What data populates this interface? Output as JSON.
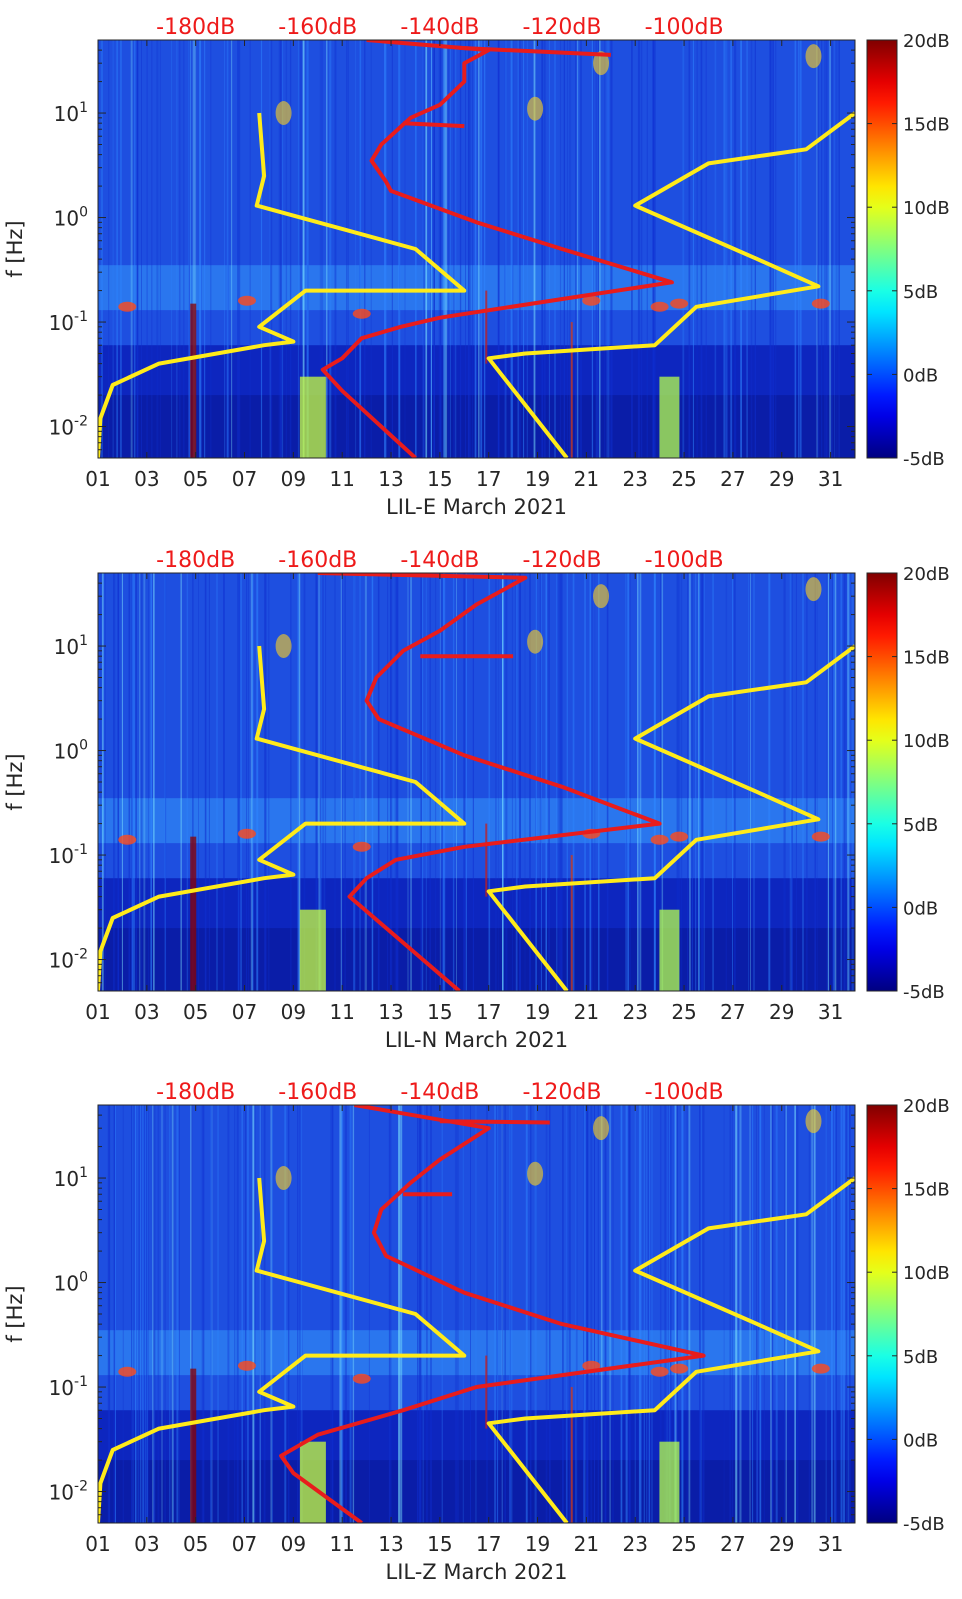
{
  "chart_data": [
    {
      "type": "heatmap",
      "title": "",
      "xlabel": "LIL-E March 2021",
      "ylabel": "f [Hz]",
      "x_ticks": [
        "01",
        "03",
        "05",
        "07",
        "09",
        "11",
        "13",
        "15",
        "17",
        "19",
        "21",
        "23",
        "25",
        "27",
        "29",
        "31"
      ],
      "xlim": [
        1,
        32
      ],
      "ylim": [
        0.005,
        50
      ],
      "y_scale": "log",
      "y_ticks": [
        {
          "value": 0.01,
          "base": "10",
          "exp": "-2"
        },
        {
          "value": 0.1,
          "base": "10",
          "exp": "-1"
        },
        {
          "value": 1,
          "base": "10",
          "exp": "0"
        },
        {
          "value": 10,
          "base": "10",
          "exp": "1"
        }
      ],
      "top_ticks": [
        "-180dB",
        "-160dB",
        "-140dB",
        "-120dB",
        "-100dB"
      ],
      "colorbar": {
        "range": [
          -5,
          20
        ],
        "ticks": [
          "20dB",
          "15dB",
          "10dB",
          "5dB",
          "0dB",
          "-5dB"
        ],
        "colormap": "jet"
      },
      "series": [
        {
          "color": "#ffeb1a",
          "points": [
            [
              1.0,
              0.005
            ],
            [
              1.1,
              0.012
            ],
            [
              1.6,
              0.025
            ],
            [
              3.5,
              0.04
            ],
            [
              7.8,
              0.06
            ],
            [
              9.0,
              0.065
            ],
            [
              7.6,
              0.09
            ],
            [
              9.5,
              0.2
            ],
            [
              16.0,
              0.2
            ],
            [
              14.0,
              0.5
            ],
            [
              7.5,
              1.3
            ],
            [
              7.8,
              2.5
            ],
            [
              7.6,
              10.0
            ]
          ]
        },
        {
          "color": "#ffeb1a",
          "points": [
            [
              20.2,
              0.005
            ],
            [
              17.0,
              0.045
            ],
            [
              18.5,
              0.05
            ],
            [
              23.8,
              0.06
            ],
            [
              25.5,
              0.14
            ],
            [
              30.5,
              0.22
            ],
            [
              28.0,
              0.4
            ],
            [
              23.0,
              1.3
            ],
            [
              26.0,
              3.3
            ],
            [
              30.0,
              4.5
            ],
            [
              32.0,
              10.0
            ]
          ]
        },
        {
          "color": "#e81c1c",
          "points": [
            [
              14.0,
              0.005
            ],
            [
              11.0,
              0.022
            ],
            [
              10.2,
              0.035
            ],
            [
              11.0,
              0.045
            ],
            [
              11.8,
              0.07
            ],
            [
              13.4,
              0.09
            ],
            [
              15.0,
              0.11
            ],
            [
              24.5,
              0.24
            ],
            [
              20.0,
              0.5
            ],
            [
              16.5,
              0.9
            ],
            [
              13.0,
              1.8
            ],
            [
              12.8,
              2.2
            ],
            [
              12.2,
              3.5
            ],
            [
              12.6,
              5.0
            ],
            [
              13.8,
              9.0
            ],
            [
              15.0,
              12.0
            ],
            [
              16.0,
              20.0
            ],
            [
              16.0,
              30.0
            ],
            [
              17.0,
              40.0
            ],
            [
              12.0,
              50.0
            ]
          ]
        },
        {
          "color": "#e81c1c",
          "points": [
            [
              15.8,
              42.0
            ],
            [
              22.0,
              36.0
            ]
          ]
        },
        {
          "color": "#e81c1c",
          "points": [
            [
              13.5,
              8.0
            ],
            [
              16.0,
              7.5
            ]
          ]
        }
      ]
    },
    {
      "type": "heatmap",
      "title": "",
      "xlabel": "LIL-N March 2021",
      "ylabel": "f [Hz]",
      "x_ticks": [
        "01",
        "03",
        "05",
        "07",
        "09",
        "11",
        "13",
        "15",
        "17",
        "19",
        "21",
        "23",
        "25",
        "27",
        "29",
        "31"
      ],
      "xlim": [
        1,
        32
      ],
      "ylim": [
        0.005,
        50
      ],
      "y_scale": "log",
      "y_ticks": [
        {
          "value": 0.01,
          "base": "10",
          "exp": "-2"
        },
        {
          "value": 0.1,
          "base": "10",
          "exp": "-1"
        },
        {
          "value": 1,
          "base": "10",
          "exp": "0"
        },
        {
          "value": 10,
          "base": "10",
          "exp": "1"
        }
      ],
      "top_ticks": [
        "-180dB",
        "-160dB",
        "-140dB",
        "-120dB",
        "-100dB"
      ],
      "colorbar": {
        "range": [
          -5,
          20
        ],
        "ticks": [
          "20dB",
          "15dB",
          "10dB",
          "5dB",
          "0dB",
          "-5dB"
        ],
        "colormap": "jet"
      },
      "series": [
        {
          "color": "#ffeb1a",
          "points": [
            [
              1.0,
              0.005
            ],
            [
              1.1,
              0.012
            ],
            [
              1.6,
              0.025
            ],
            [
              3.5,
              0.04
            ],
            [
              7.8,
              0.06
            ],
            [
              9.0,
              0.065
            ],
            [
              7.6,
              0.09
            ],
            [
              9.5,
              0.2
            ],
            [
              16.0,
              0.2
            ],
            [
              14.0,
              0.5
            ],
            [
              7.5,
              1.3
            ],
            [
              7.8,
              2.5
            ],
            [
              7.6,
              10.0
            ]
          ]
        },
        {
          "color": "#ffeb1a",
          "points": [
            [
              20.2,
              0.005
            ],
            [
              17.0,
              0.045
            ],
            [
              18.5,
              0.05
            ],
            [
              23.8,
              0.06
            ],
            [
              25.5,
              0.14
            ],
            [
              30.5,
              0.22
            ],
            [
              28.0,
              0.4
            ],
            [
              23.0,
              1.3
            ],
            [
              26.0,
              3.3
            ],
            [
              30.0,
              4.5
            ],
            [
              32.0,
              10.0
            ]
          ]
        },
        {
          "color": "#e81c1c",
          "points": [
            [
              15.8,
              0.005
            ],
            [
              11.3,
              0.04
            ],
            [
              12.0,
              0.06
            ],
            [
              13.2,
              0.09
            ],
            [
              16.0,
              0.12
            ],
            [
              24.0,
              0.2
            ],
            [
              20.0,
              0.45
            ],
            [
              16.0,
              0.9
            ],
            [
              12.5,
              2.0
            ],
            [
              12.0,
              3.0
            ],
            [
              12.4,
              5.0
            ],
            [
              13.5,
              9.0
            ],
            [
              15.0,
              14.0
            ],
            [
              16.5,
              25.0
            ],
            [
              18.5,
              45.0
            ],
            [
              10.0,
              50.0
            ]
          ]
        },
        {
          "color": "#e81c1c",
          "points": [
            [
              14.2,
              8.0
            ],
            [
              18.0,
              8.0
            ]
          ]
        }
      ]
    },
    {
      "type": "heatmap",
      "title": "",
      "xlabel": "LIL-Z March 2021",
      "ylabel": "f [Hz]",
      "x_ticks": [
        "01",
        "03",
        "05",
        "07",
        "09",
        "11",
        "13",
        "15",
        "17",
        "19",
        "21",
        "23",
        "25",
        "27",
        "29",
        "31"
      ],
      "xlim": [
        1,
        32
      ],
      "ylim": [
        0.005,
        50
      ],
      "y_scale": "log",
      "y_ticks": [
        {
          "value": 0.01,
          "base": "10",
          "exp": "-2"
        },
        {
          "value": 0.1,
          "base": "10",
          "exp": "-1"
        },
        {
          "value": 1,
          "base": "10",
          "exp": "0"
        },
        {
          "value": 10,
          "base": "10",
          "exp": "1"
        }
      ],
      "top_ticks": [
        "-180dB",
        "-160dB",
        "-140dB",
        "-120dB",
        "-100dB"
      ],
      "colorbar": {
        "range": [
          -5,
          20
        ],
        "ticks": [
          "20dB",
          "15dB",
          "10dB",
          "5dB",
          "0dB",
          "-5dB"
        ],
        "colormap": "jet"
      },
      "series": [
        {
          "color": "#ffeb1a",
          "points": [
            [
              1.0,
              0.005
            ],
            [
              1.1,
              0.012
            ],
            [
              1.6,
              0.025
            ],
            [
              3.5,
              0.04
            ],
            [
              7.8,
              0.06
            ],
            [
              9.0,
              0.065
            ],
            [
              7.6,
              0.09
            ],
            [
              9.5,
              0.2
            ],
            [
              16.0,
              0.2
            ],
            [
              14.0,
              0.5
            ],
            [
              7.5,
              1.3
            ],
            [
              7.8,
              2.5
            ],
            [
              7.6,
              10.0
            ]
          ]
        },
        {
          "color": "#ffeb1a",
          "points": [
            [
              20.2,
              0.005
            ],
            [
              17.0,
              0.045
            ],
            [
              18.5,
              0.05
            ],
            [
              23.8,
              0.06
            ],
            [
              25.5,
              0.14
            ],
            [
              30.5,
              0.22
            ],
            [
              28.0,
              0.4
            ],
            [
              23.0,
              1.3
            ],
            [
              26.0,
              3.3
            ],
            [
              30.0,
              4.5
            ],
            [
              32.0,
              10.0
            ]
          ]
        },
        {
          "color": "#e81c1c",
          "points": [
            [
              11.8,
              0.005
            ],
            [
              9.0,
              0.015
            ],
            [
              8.5,
              0.022
            ],
            [
              10.0,
              0.035
            ],
            [
              13.5,
              0.06
            ],
            [
              16.5,
              0.1
            ],
            [
              25.8,
              0.2
            ],
            [
              20.0,
              0.4
            ],
            [
              16.0,
              0.8
            ],
            [
              12.8,
              1.8
            ],
            [
              12.3,
              3.0
            ],
            [
              12.6,
              5.0
            ],
            [
              13.8,
              9.0
            ],
            [
              15.0,
              15.0
            ],
            [
              17.0,
              30.0
            ],
            [
              11.5,
              50.0
            ]
          ]
        },
        {
          "color": "#e81c1c",
          "points": [
            [
              15.0,
              35.0
            ],
            [
              19.5,
              34.0
            ]
          ]
        },
        {
          "color": "#e81c1c",
          "points": [
            [
              13.5,
              7.0
            ],
            [
              15.5,
              7.0
            ]
          ]
        }
      ]
    }
  ]
}
